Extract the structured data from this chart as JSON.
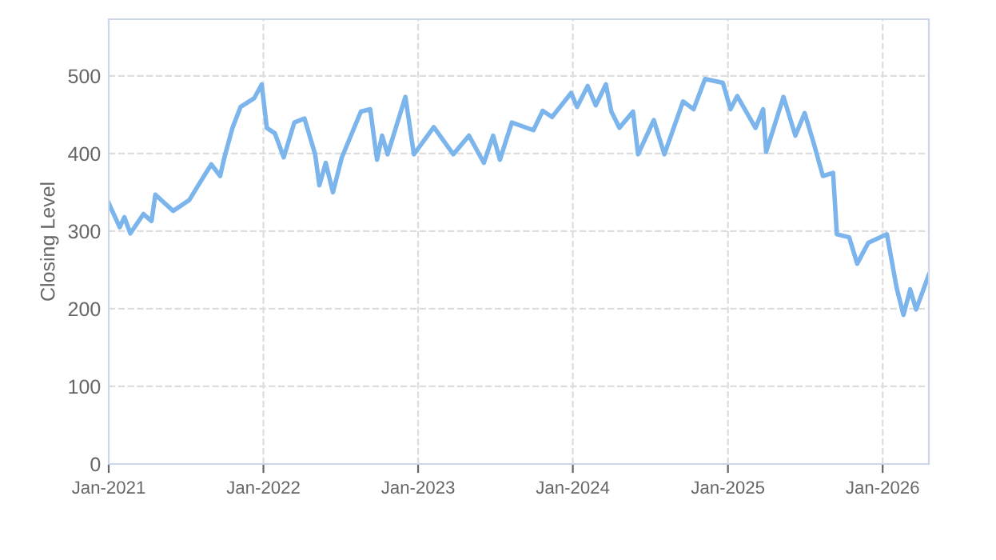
{
  "chart_data": {
    "type": "line",
    "ylabel": "Closing Level",
    "x": [
      "2021-01-01",
      "2021-01-27",
      "2021-02-07",
      "2021-02-21",
      "2021-03-24",
      "2021-04-12",
      "2021-04-21",
      "2021-06-02",
      "2021-07-10",
      "2021-07-29",
      "2021-08-31",
      "2021-09-21",
      "2021-10-01",
      "2021-10-20",
      "2021-11-08",
      "2021-12-10",
      "2021-12-28",
      "2022-01-09",
      "2022-01-28",
      "2022-02-18",
      "2022-03-15",
      "2022-04-08",
      "2022-05-03",
      "2022-05-13",
      "2022-05-28",
      "2022-06-14",
      "2022-07-05",
      "2022-08-19",
      "2022-09-10",
      "2022-09-26",
      "2022-10-08",
      "2022-10-21",
      "2022-12-02",
      "2022-12-22",
      "2023-02-07",
      "2023-03-25",
      "2023-05-01",
      "2023-06-05",
      "2023-06-27",
      "2023-07-13",
      "2023-08-10",
      "2023-09-30",
      "2023-10-22",
      "2023-11-13",
      "2023-12-28",
      "2024-01-11",
      "2024-02-05",
      "2024-02-24",
      "2024-03-19",
      "2024-04-01",
      "2024-04-20",
      "2024-05-22",
      "2024-06-03",
      "2024-07-10",
      "2024-08-04",
      "2024-09-17",
      "2024-10-12",
      "2024-11-08",
      "2024-12-20",
      "2025-01-07",
      "2025-01-23",
      "2025-03-07",
      "2025-03-25",
      "2025-04-01",
      "2025-04-19",
      "2025-05-12",
      "2025-06-09",
      "2025-07-01",
      "2025-07-23",
      "2025-08-13",
      "2025-09-06",
      "2025-09-15",
      "2025-10-14",
      "2025-11-02",
      "2025-11-28",
      "2026-01-11",
      "2026-02-03",
      "2026-02-19",
      "2026-03-07",
      "2026-03-21",
      "2026-04-20"
    ],
    "series": [
      {
        "color": "#7cb5ec",
        "values": [
          336,
          305,
          318,
          297,
          322,
          313,
          347,
          326,
          340,
          357,
          386,
          371,
          395,
          433,
          460,
          471,
          489,
          433,
          426,
          395,
          440,
          445,
          399,
          359,
          388,
          350,
          395,
          454,
          457,
          392,
          423,
          399,
          473,
          399,
          434,
          399,
          423,
          388,
          423,
          392,
          440,
          430,
          455,
          447,
          478,
          460,
          487,
          462,
          489,
          454,
          433,
          454,
          399,
          443,
          399,
          467,
          457,
          496,
          491,
          457,
          474,
          433,
          457,
          402,
          433,
          473,
          423,
          452,
          412,
          371,
          375,
          296,
          292,
          258,
          285,
          296,
          227,
          192,
          225,
          199,
          244
        ]
      }
    ],
    "xlim": [
      "2021-01-01",
      "2026-04-20"
    ],
    "xticks": [
      {
        "value": "2021-01-01",
        "label": "Jan-2021"
      },
      {
        "value": "2022-01-01",
        "label": "Jan-2022"
      },
      {
        "value": "2023-01-01",
        "label": "Jan-2023"
      },
      {
        "value": "2024-01-01",
        "label": "Jan-2024"
      },
      {
        "value": "2025-01-01",
        "label": "Jan-2025"
      },
      {
        "value": "2026-01-01",
        "label": "Jan-2026"
      }
    ],
    "ylim": [
      0,
      573
    ],
    "yticks": [
      0,
      100,
      200,
      300,
      400,
      500
    ],
    "grid": true,
    "line_style": "solid",
    "marker": "none"
  }
}
